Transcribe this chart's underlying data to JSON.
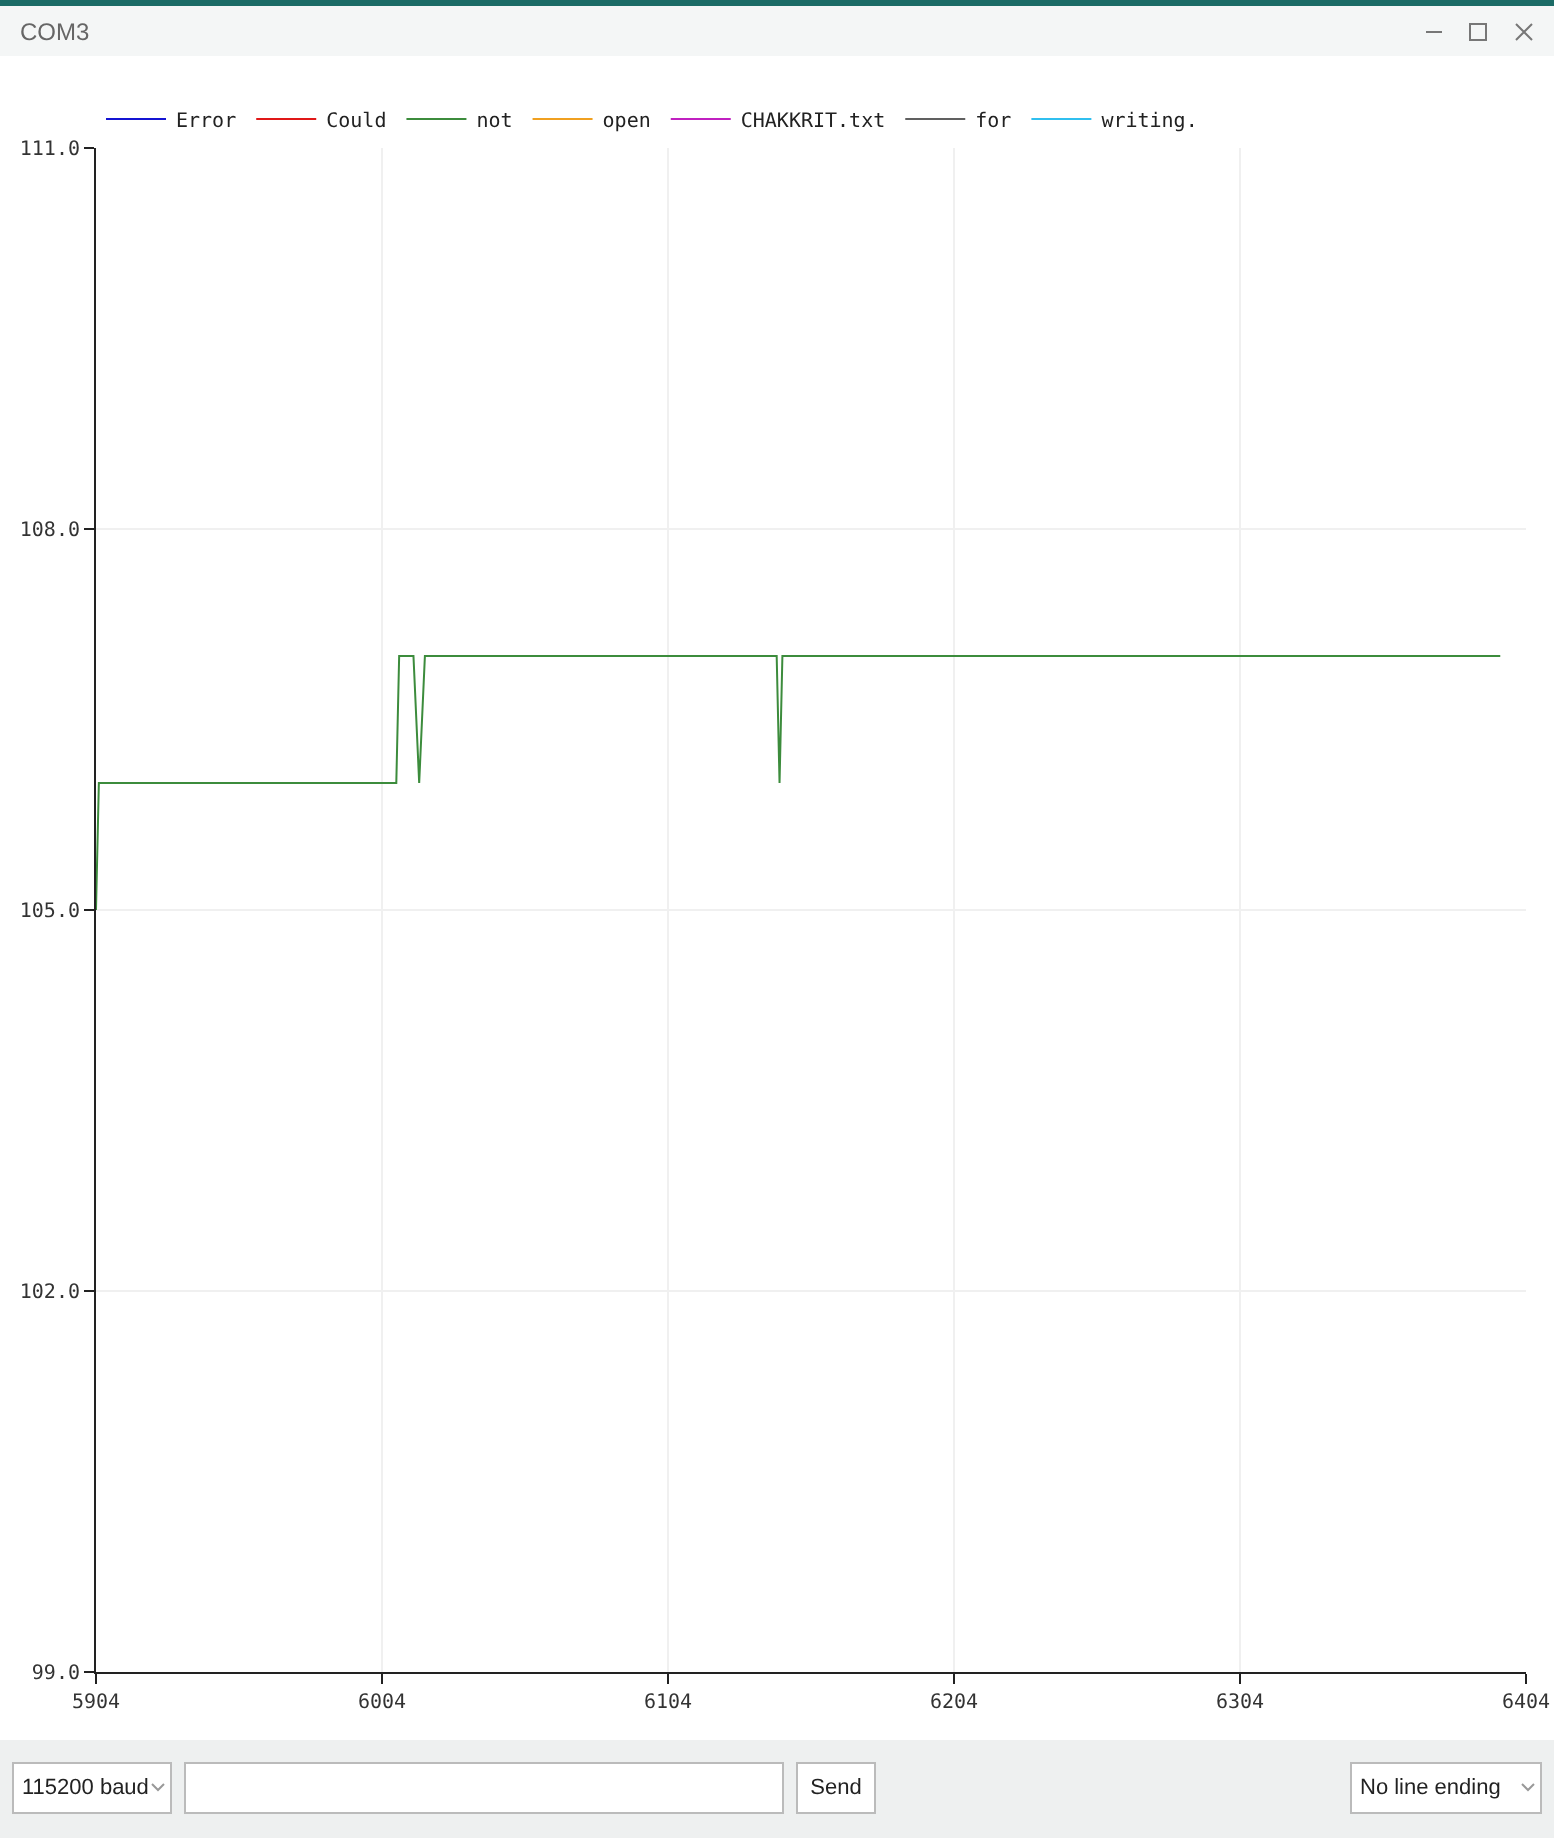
{
  "chart_data": {
    "type": "line",
    "annotations": [
      "COM3",
      "115200 baud",
      "Send",
      "No line ending"
    ],
    "xlim": [
      5904,
      6404
    ],
    "xticks": [
      5904,
      6004,
      6104,
      6204,
      6304,
      6404
    ],
    "ylim": [
      99,
      111
    ],
    "yticks": [
      {
        "value": 99,
        "label": "99.0"
      },
      {
        "value": 102,
        "label": "102.0"
      },
      {
        "value": 105,
        "label": "105.0"
      },
      {
        "value": 108,
        "label": "108.0"
      },
      {
        "value": 111,
        "label": "111.0"
      }
    ],
    "grid": true,
    "legend": "top left",
    "marker": "none",
    "line_style": "solid",
    "series": [
      {
        "name": "Error",
        "color": "#1414d2"
      },
      {
        "name": "Could",
        "color": "#e01818"
      },
      {
        "name": "not",
        "color": "#3c8c3c",
        "x": [
          5904,
          5905,
          6009,
          6010,
          6015,
          6017,
          6019,
          6142,
          6143,
          6144,
          6395
        ],
        "values": [
          105,
          106,
          106,
          107,
          107,
          106,
          107,
          107,
          106,
          107,
          107
        ]
      },
      {
        "name": "open",
        "color": "#f0a020"
      },
      {
        "name": "CHAKKRIT.txt",
        "color": "#c020c0"
      },
      {
        "name": "for",
        "color": "#606060"
      },
      {
        "name": "writing.",
        "color": "#30bfef"
      }
    ]
  }
}
